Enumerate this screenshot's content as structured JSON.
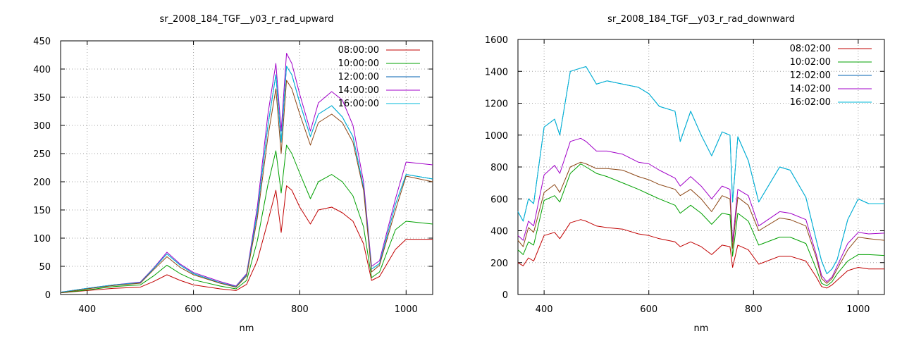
{
  "chart_data": [
    {
      "type": "line",
      "title": "sr_2008_184_TGF__y03_r_rad_upward",
      "xlabel": "nm",
      "ylabel": "",
      "xlim": [
        350,
        1050
      ],
      "ylim": [
        0,
        450
      ],
      "xticks": [
        400,
        600,
        800,
        1000
      ],
      "yticks": [
        0,
        50,
        100,
        150,
        200,
        250,
        300,
        350,
        400,
        450
      ],
      "grid": true,
      "legend_position": "top-right",
      "x": [
        350,
        400,
        450,
        500,
        525,
        550,
        575,
        600,
        650,
        680,
        700,
        720,
        740,
        755,
        765,
        775,
        785,
        800,
        820,
        835,
        860,
        880,
        900,
        920,
        935,
        950,
        980,
        1000,
        1050
      ],
      "series": [
        {
          "name": "08:00:00",
          "color": "#c00000",
          "values": [
            3,
            7,
            11,
            13,
            23,
            35,
            25,
            17,
            10,
            7,
            18,
            60,
            130,
            185,
            110,
            193,
            185,
            155,
            125,
            150,
            155,
            145,
            130,
            90,
            25,
            32,
            80,
            98,
            98
          ]
        },
        {
          "name": "10:00:00",
          "color": "#00a000",
          "values": [
            3,
            8,
            14,
            17,
            33,
            52,
            37,
            26,
            15,
            10,
            25,
            95,
            195,
            255,
            180,
            265,
            250,
            215,
            170,
            200,
            213,
            200,
            175,
            120,
            30,
            40,
            115,
            130,
            125
          ]
        },
        {
          "name": "12:00:00",
          "color": "#0060b0",
          "values": [
            4,
            11,
            17,
            21,
            46,
            72,
            52,
            37,
            21,
            14,
            35,
            145,
            300,
            390,
            270,
            405,
            390,
            340,
            280,
            320,
            335,
            315,
            280,
            190,
            45,
            55,
            160,
            213,
            205
          ]
        },
        {
          "name": "14:00:00",
          "color": "#a000c8",
          "values": [
            4,
            11,
            17,
            22,
            47,
            75,
            54,
            39,
            23,
            15,
            37,
            155,
            320,
            410,
            290,
            428,
            410,
            355,
            290,
            340,
            360,
            345,
            300,
            200,
            50,
            60,
            170,
            235,
            230
          ]
        },
        {
          "name": "16:00:00",
          "color": "#00b8d8",
          "values": [
            4,
            11,
            17,
            21,
            46,
            72,
            52,
            37,
            21,
            14,
            35,
            145,
            300,
            390,
            270,
            405,
            390,
            340,
            280,
            320,
            335,
            315,
            280,
            190,
            45,
            55,
            160,
            213,
            205
          ]
        },
        {
          "name": "",
          "color": "#8b4513",
          "values": [
            3,
            10,
            16,
            20,
            44,
            67,
            48,
            35,
            20,
            13,
            33,
            135,
            280,
            365,
            250,
            380,
            365,
            320,
            265,
            305,
            320,
            305,
            270,
            185,
            40,
            52,
            150,
            210,
            200
          ]
        }
      ]
    },
    {
      "type": "line",
      "title": "sr_2008_184_TGF__y03_r_rad_downward",
      "xlabel": "nm",
      "ylabel": "",
      "xlim": [
        350,
        1050
      ],
      "ylim": [
        0,
        1600
      ],
      "xticks": [
        400,
        600,
        800,
        1000
      ],
      "yticks": [
        0,
        200,
        400,
        600,
        800,
        1000,
        1200,
        1400,
        1600
      ],
      "grid": true,
      "legend_position": "top-right",
      "x": [
        350,
        360,
        370,
        380,
        400,
        420,
        430,
        450,
        470,
        480,
        500,
        520,
        550,
        580,
        600,
        620,
        650,
        660,
        680,
        700,
        720,
        740,
        755,
        760,
        770,
        790,
        810,
        850,
        870,
        900,
        920,
        930,
        940,
        950,
        960,
        980,
        1000,
        1020,
        1050
      ],
      "series": [
        {
          "name": "08:02:00",
          "color": "#c00000",
          "values": [
            200,
            180,
            230,
            210,
            370,
            390,
            350,
            450,
            470,
            460,
            430,
            420,
            410,
            380,
            370,
            350,
            330,
            300,
            330,
            300,
            250,
            310,
            300,
            170,
            310,
            280,
            190,
            240,
            240,
            210,
            110,
            50,
            40,
            60,
            90,
            150,
            170,
            160,
            160
          ]
        },
        {
          "name": "10:02:00",
          "color": "#00a000",
          "values": [
            280,
            250,
            330,
            310,
            590,
            620,
            580,
            760,
            820,
            800,
            760,
            740,
            700,
            660,
            630,
            600,
            560,
            510,
            560,
            510,
            440,
            510,
            500,
            240,
            510,
            460,
            310,
            360,
            360,
            320,
            160,
            70,
            55,
            80,
            130,
            210,
            250,
            250,
            245
          ]
        },
        {
          "name": "12:02:00",
          "color": "#0060b0",
          "values": [
            520,
            460,
            600,
            570,
            1050,
            1100,
            1000,
            1400,
            1420,
            1430,
            1320,
            1340,
            1320,
            1300,
            1260,
            1180,
            1150,
            960,
            1150,
            1000,
            870,
            1020,
            1000,
            580,
            990,
            840,
            580,
            800,
            780,
            610,
            340,
            210,
            130,
            160,
            220,
            470,
            600,
            570,
            570
          ]
        },
        {
          "name": "14:02:00",
          "color": "#a000c8",
          "values": [
            370,
            340,
            460,
            430,
            750,
            810,
            760,
            960,
            980,
            960,
            900,
            900,
            880,
            830,
            820,
            780,
            730,
            680,
            740,
            680,
            600,
            680,
            660,
            330,
            660,
            620,
            430,
            520,
            510,
            470,
            250,
            120,
            80,
            110,
            180,
            320,
            390,
            380,
            385
          ]
        },
        {
          "name": "16:02:00",
          "color": "#00b8d8",
          "values": [
            520,
            460,
            600,
            570,
            1050,
            1100,
            1000,
            1400,
            1420,
            1430,
            1320,
            1340,
            1320,
            1300,
            1260,
            1180,
            1150,
            960,
            1150,
            1000,
            870,
            1020,
            1000,
            580,
            990,
            840,
            580,
            800,
            780,
            610,
            340,
            210,
            130,
            160,
            220,
            470,
            600,
            570,
            570
          ]
        },
        {
          "name": "",
          "color": "#8b4513",
          "values": [
            340,
            300,
            420,
            390,
            640,
            690,
            640,
            800,
            830,
            820,
            790,
            790,
            780,
            740,
            720,
            690,
            660,
            620,
            660,
            600,
            520,
            620,
            600,
            290,
            610,
            560,
            400,
            480,
            470,
            430,
            230,
            100,
            70,
            100,
            160,
            280,
            360,
            350,
            340
          ]
        }
      ]
    }
  ]
}
